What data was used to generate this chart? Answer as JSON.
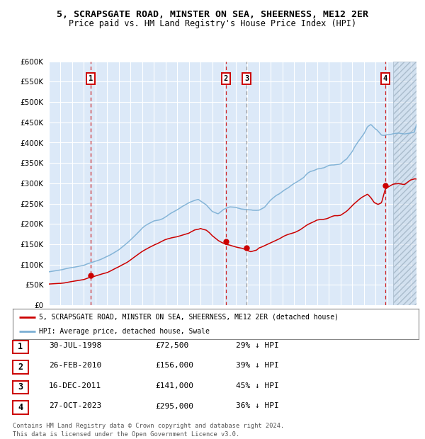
{
  "title": "5, SCRAPSGATE ROAD, MINSTER ON SEA, SHEERNESS, ME12 2ER",
  "subtitle": "Price paid vs. HM Land Registry's House Price Index (HPI)",
  "ylim": [
    0,
    600000
  ],
  "yticks": [
    0,
    50000,
    100000,
    150000,
    200000,
    250000,
    300000,
    350000,
    400000,
    450000,
    500000,
    550000,
    600000
  ],
  "background_color": "#dce9f8",
  "grid_color": "#ffffff",
  "hpi_color": "#7bafd4",
  "price_color": "#cc0000",
  "transactions": [
    {
      "num": 1,
      "date": "30-JUL-1998",
      "price": 72500,
      "pct": "29%",
      "x_year": 1998.57
    },
    {
      "num": 2,
      "date": "26-FEB-2010",
      "price": 156000,
      "pct": "39%",
      "x_year": 2010.15
    },
    {
      "num": 3,
      "date": "16-DEC-2011",
      "price": 141000,
      "pct": "45%",
      "x_year": 2011.96
    },
    {
      "num": 4,
      "date": "27-OCT-2023",
      "price": 295000,
      "pct": "36%",
      "x_year": 2023.82
    }
  ],
  "vlines": [
    {
      "x": 1998.57,
      "color": "#cc0000",
      "ls": "--"
    },
    {
      "x": 2010.15,
      "color": "#cc0000",
      "ls": "--"
    },
    {
      "x": 2011.96,
      "color": "#888888",
      "ls": "--"
    },
    {
      "x": 2023.82,
      "color": "#cc0000",
      "ls": "--"
    }
  ],
  "legend_label_red": "5, SCRAPSGATE ROAD, MINSTER ON SEA, SHEERNESS, ME12 2ER (detached house)",
  "legend_label_blue": "HPI: Average price, detached house, Swale",
  "table_rows": [
    {
      "num": "1",
      "date": "30-JUL-1998",
      "price": "£72,500",
      "pct": "29% ↓ HPI"
    },
    {
      "num": "2",
      "date": "26-FEB-2010",
      "price": "£156,000",
      "pct": "39% ↓ HPI"
    },
    {
      "num": "3",
      "date": "16-DEC-2011",
      "price": "£141,000",
      "pct": "45% ↓ HPI"
    },
    {
      "num": "4",
      "date": "27-OCT-2023",
      "price": "£295,000",
      "pct": "36% ↓ HPI"
    }
  ],
  "footer": "Contains HM Land Registry data © Crown copyright and database right 2024.\nThis data is licensed under the Open Government Licence v3.0.",
  "xlim_start": 1995.0,
  "xlim_end": 2026.5,
  "hatch_start": 2024.5,
  "hpi_keypoints": [
    [
      1995.0,
      82000
    ],
    [
      1996.0,
      87000
    ],
    [
      1997.0,
      94000
    ],
    [
      1998.0,
      100000
    ],
    [
      1999.0,
      110000
    ],
    [
      2000.0,
      122000
    ],
    [
      2001.0,
      137000
    ],
    [
      2002.0,
      160000
    ],
    [
      2003.0,
      188000
    ],
    [
      2004.0,
      210000
    ],
    [
      2005.0,
      222000
    ],
    [
      2006.0,
      240000
    ],
    [
      2007.0,
      258000
    ],
    [
      2007.8,
      268000
    ],
    [
      2008.5,
      255000
    ],
    [
      2009.0,
      238000
    ],
    [
      2009.5,
      232000
    ],
    [
      2010.0,
      242000
    ],
    [
      2010.5,
      248000
    ],
    [
      2011.0,
      248000
    ],
    [
      2011.5,
      243000
    ],
    [
      2012.0,
      240000
    ],
    [
      2012.5,
      238000
    ],
    [
      2013.0,
      242000
    ],
    [
      2013.5,
      250000
    ],
    [
      2014.0,
      265000
    ],
    [
      2014.5,
      278000
    ],
    [
      2015.0,
      288000
    ],
    [
      2015.5,
      298000
    ],
    [
      2016.0,
      310000
    ],
    [
      2016.5,
      322000
    ],
    [
      2017.0,
      335000
    ],
    [
      2017.5,
      345000
    ],
    [
      2018.0,
      352000
    ],
    [
      2018.5,
      358000
    ],
    [
      2019.0,
      365000
    ],
    [
      2019.5,
      372000
    ],
    [
      2020.0,
      375000
    ],
    [
      2020.5,
      385000
    ],
    [
      2021.0,
      405000
    ],
    [
      2021.5,
      435000
    ],
    [
      2022.0,
      465000
    ],
    [
      2022.3,
      485000
    ],
    [
      2022.6,
      490000
    ],
    [
      2022.9,
      478000
    ],
    [
      2023.2,
      468000
    ],
    [
      2023.5,
      460000
    ],
    [
      2023.8,
      462000
    ],
    [
      2024.0,
      465000
    ],
    [
      2024.5,
      470000
    ],
    [
      2025.0,
      472000
    ],
    [
      2025.5,
      468000
    ],
    [
      2026.0,
      472000
    ],
    [
      2026.5,
      475000
    ]
  ],
  "price_keypoints": [
    [
      1995.0,
      52000
    ],
    [
      1996.0,
      55000
    ],
    [
      1997.0,
      60000
    ],
    [
      1998.0,
      66000
    ],
    [
      1998.57,
      72500
    ],
    [
      1999.0,
      76000
    ],
    [
      2000.0,
      83000
    ],
    [
      2001.0,
      95000
    ],
    [
      2002.0,
      112000
    ],
    [
      2003.0,
      132000
    ],
    [
      2004.0,
      148000
    ],
    [
      2005.0,
      160000
    ],
    [
      2006.0,
      170000
    ],
    [
      2007.0,
      182000
    ],
    [
      2007.5,
      192000
    ],
    [
      2008.0,
      195000
    ],
    [
      2008.5,
      188000
    ],
    [
      2009.0,
      175000
    ],
    [
      2009.5,
      165000
    ],
    [
      2010.15,
      156000
    ],
    [
      2010.5,
      155000
    ],
    [
      2011.0,
      150000
    ],
    [
      2011.5,
      147000
    ],
    [
      2011.96,
      141000
    ],
    [
      2012.3,
      138000
    ],
    [
      2012.8,
      142000
    ],
    [
      2013.0,
      148000
    ],
    [
      2013.5,
      155000
    ],
    [
      2014.0,
      162000
    ],
    [
      2014.5,
      170000
    ],
    [
      2015.0,
      178000
    ],
    [
      2015.5,
      186000
    ],
    [
      2016.0,
      193000
    ],
    [
      2016.5,
      200000
    ],
    [
      2017.0,
      208000
    ],
    [
      2017.5,
      215000
    ],
    [
      2018.0,
      220000
    ],
    [
      2018.5,
      225000
    ],
    [
      2019.0,
      230000
    ],
    [
      2019.5,
      235000
    ],
    [
      2020.0,
      238000
    ],
    [
      2020.5,
      248000
    ],
    [
      2021.0,
      262000
    ],
    [
      2021.5,
      275000
    ],
    [
      2022.0,
      285000
    ],
    [
      2022.3,
      290000
    ],
    [
      2022.6,
      280000
    ],
    [
      2022.9,
      265000
    ],
    [
      2023.2,
      258000
    ],
    [
      2023.5,
      262000
    ],
    [
      2023.82,
      295000
    ],
    [
      2024.0,
      298000
    ],
    [
      2024.5,
      302000
    ],
    [
      2025.0,
      305000
    ],
    [
      2025.5,
      300000
    ],
    [
      2026.0,
      305000
    ],
    [
      2026.5,
      308000
    ]
  ]
}
